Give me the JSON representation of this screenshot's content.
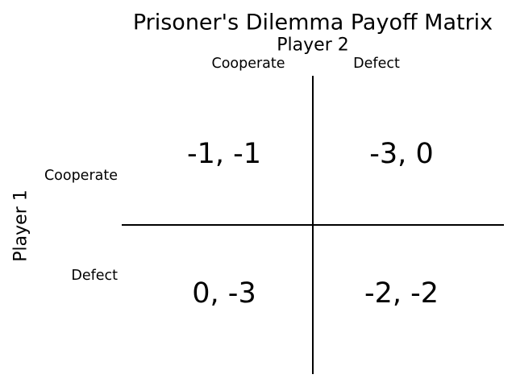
{
  "title": "Prisoner's Dilemma Payoff Matrix",
  "player2_label": "Player 2",
  "player1_label": "Player 1",
  "columns": [
    "Cooperate",
    "Defect"
  ],
  "rows": [
    "Cooperate",
    "Defect"
  ],
  "payoffs": [
    [
      "-1, -1",
      "-3, 0"
    ],
    [
      "0, -3",
      "-2, -2"
    ]
  ]
}
